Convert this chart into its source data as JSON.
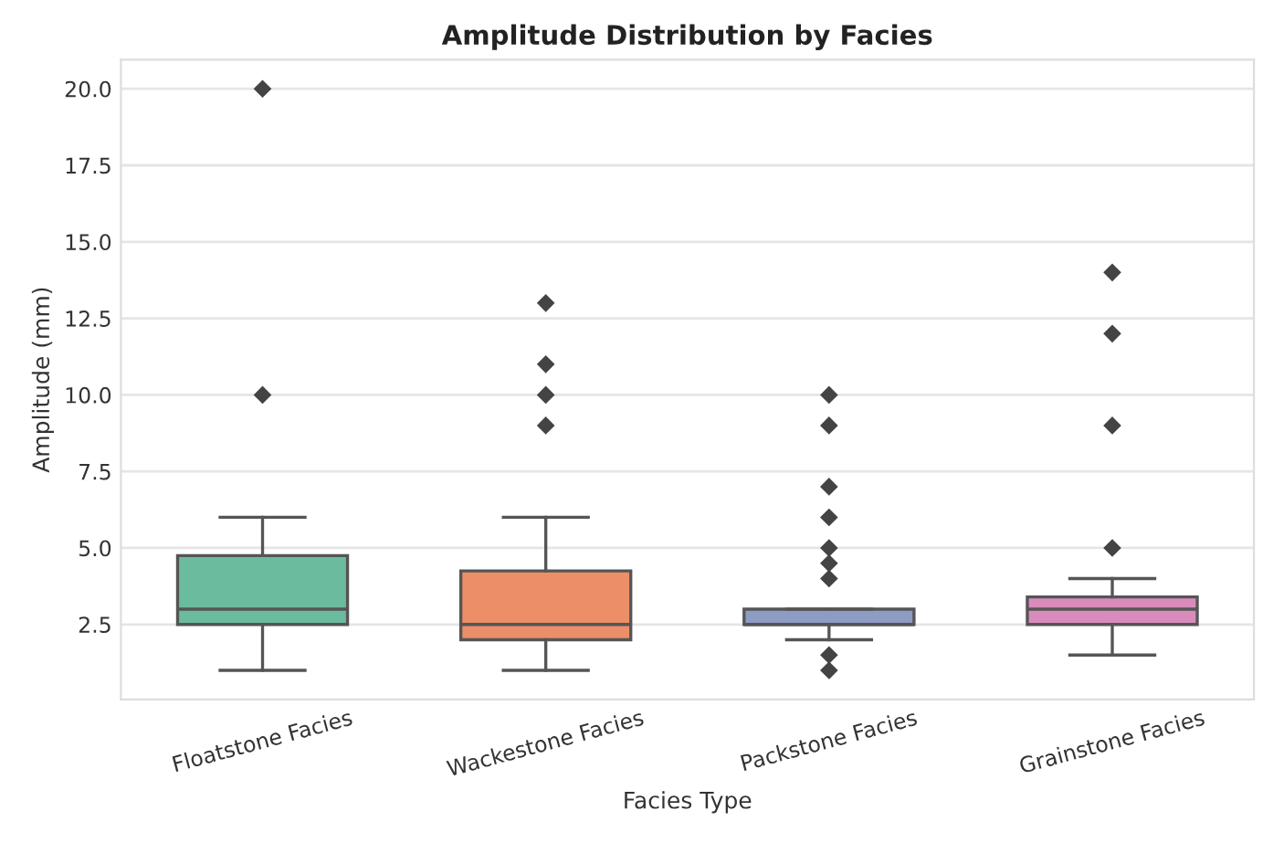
{
  "chart_data": {
    "type": "box",
    "title": "Amplitude Distribution by Facies",
    "xlabel": "Facies Type",
    "ylabel": "Amplitude (mm)",
    "categories": [
      "Floatstone Facies",
      "Wackestone Facies",
      "Packstone Facies",
      "Grainstone Facies"
    ],
    "colors": [
      "#6bbb9e",
      "#ec8e68",
      "#8e9cc4",
      "#d98cbc"
    ],
    "boxes": [
      {
        "low": 1,
        "q1": 2.5,
        "median": 3.0,
        "q3": 4.75,
        "high": 6,
        "outliers": [
          10,
          20
        ]
      },
      {
        "low": 1,
        "q1": 2.0,
        "median": 2.5,
        "q3": 4.25,
        "high": 6,
        "outliers": [
          9,
          10,
          11,
          13
        ]
      },
      {
        "low": 2.0,
        "q1": 2.5,
        "median": 2.5,
        "q3": 3.0,
        "high": 3.0,
        "outliers": [
          1,
          1.5,
          4,
          4.5,
          5,
          6,
          7,
          9,
          10
        ]
      },
      {
        "low": 1.5,
        "q1": 2.5,
        "median": 3.0,
        "q3": 3.4,
        "high": 4.0,
        "outliers": [
          5,
          9,
          12,
          14
        ]
      }
    ],
    "ylim": [
      0.05,
      20.95
    ],
    "yticks": [
      {
        "value": 2.5,
        "label": "2.5"
      },
      {
        "value": 5,
        "label": "5.0"
      },
      {
        "value": 7.5,
        "label": "7.5"
      },
      {
        "value": 10,
        "label": "10.0"
      },
      {
        "value": 12.5,
        "label": "12.5"
      },
      {
        "value": 15,
        "label": "15.0"
      },
      {
        "value": 17.5,
        "label": "17.5"
      },
      {
        "value": 20,
        "label": "20.0"
      }
    ],
    "grid": "y",
    "marker": "diamond"
  }
}
